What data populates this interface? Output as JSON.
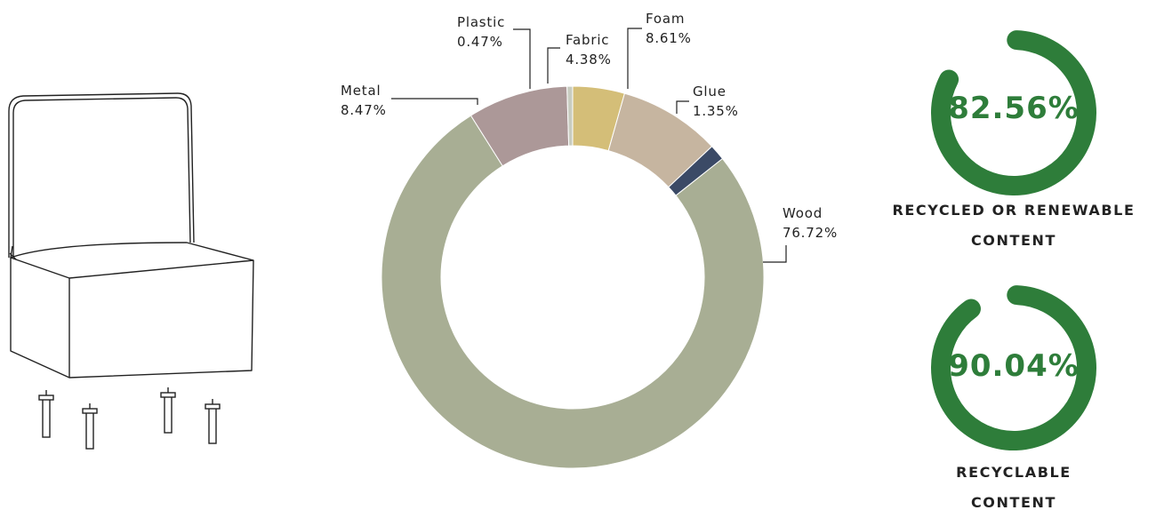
{
  "chart_data": {
    "type": "pie",
    "title": "",
    "donut": true,
    "legend": "callout labels",
    "slices": [
      {
        "label": "Fabric",
        "value": 4.38,
        "display": "4.38%",
        "color": "#d4be78"
      },
      {
        "label": "Foam",
        "value": 8.61,
        "display": "8.61%",
        "color": "#c6b5a0"
      },
      {
        "label": "Glue",
        "value": 1.35,
        "display": "1.35%",
        "color": "#3b4a66"
      },
      {
        "label": "Wood",
        "value": 76.72,
        "display": "76.72%",
        "color": "#a8ae94"
      },
      {
        "label": "Metal",
        "value": 8.47,
        "display": "8.47%",
        "color": "#ac9898"
      },
      {
        "label": "Plastic",
        "value": 0.47,
        "display": "0.47%",
        "color": "#c8ccc0"
      }
    ]
  },
  "gauges": [
    {
      "value": 82.56,
      "display": "82.56%",
      "label_lines": [
        "RECYCLED OR RENEWABLE",
        "CONTENT"
      ],
      "color": "#2e7d3a"
    },
    {
      "value": 90.04,
      "display": "90.04%",
      "label_lines": [
        "RECYCLABLE",
        "CONTENT"
      ],
      "color": "#2e7d3a"
    }
  ]
}
